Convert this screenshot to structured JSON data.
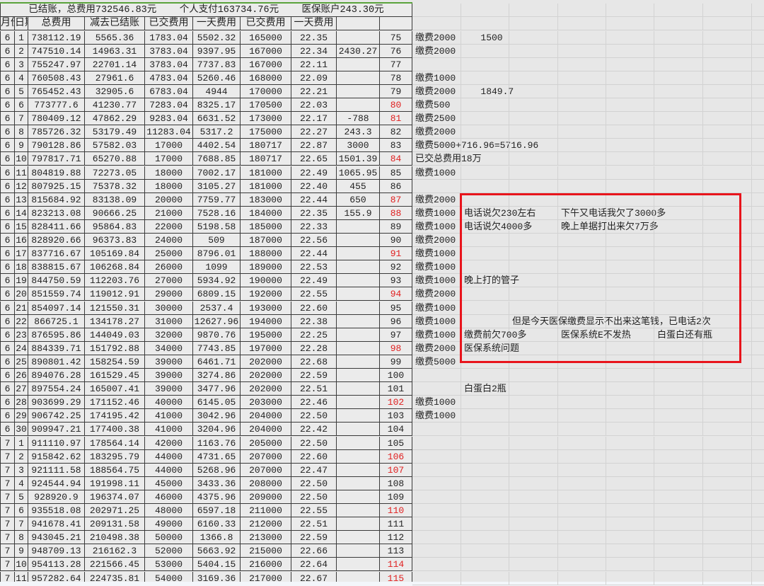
{
  "title_row": {
    "text": "已结账，总费用732546.83元    个人支付163734.76元    医保账户243.30元"
  },
  "headers": [
    "月份",
    "日期",
    "总费用",
    "减去已结账",
    "已交费用",
    "一天费用",
    "已交费用",
    "一天费用",
    "",
    ""
  ],
  "highlight_color": "#e02020",
  "highlight_box_color": "#e8141c",
  "red_numbers": [
    "80",
    "81",
    "84",
    "87",
    "88",
    "91",
    "94",
    "98",
    "102",
    "106",
    "107",
    "110",
    "114",
    "115"
  ],
  "rows": [
    {
      "c": [
        "6",
        "1",
        "738112.19",
        "5565.36",
        "1783.04",
        "5502.32",
        "165000",
        "22.35",
        "",
        "75"
      ],
      "n": [
        "缴费2000",
        "   1500"
      ]
    },
    {
      "c": [
        "6",
        "2",
        "747510.14",
        "14963.31",
        "3783.04",
        "9397.95",
        "167000",
        "22.34",
        "2430.27",
        "76"
      ],
      "n": [
        "缴费2000"
      ]
    },
    {
      "c": [
        "6",
        "3",
        "755247.97",
        "22701.14",
        "3783.04",
        "7737.83",
        "167000",
        "22.11",
        "",
        "77"
      ],
      "n": []
    },
    {
      "c": [
        "6",
        "4",
        "760508.43",
        "27961.6",
        "4783.04",
        "5260.46",
        "168000",
        "22.09",
        "",
        "78"
      ],
      "n": [
        "缴费1000"
      ]
    },
    {
      "c": [
        "6",
        "5",
        "765452.43",
        "32905.6",
        "6783.04",
        "4944",
        "170000",
        "22.21",
        "",
        "79"
      ],
      "n": [
        "缴费2000",
        "   1849.7"
      ]
    },
    {
      "c": [
        "6",
        "6",
        "773777.6",
        "41230.77",
        "7283.04",
        "8325.17",
        "170500",
        "22.03",
        "",
        "80"
      ],
      "n": [
        "缴费500"
      ]
    },
    {
      "c": [
        "6",
        "7",
        "780409.12",
        "47862.29",
        "9283.04",
        "6631.52",
        "173000",
        "22.17",
        "-788",
        "81"
      ],
      "n": [
        "缴费2500"
      ]
    },
    {
      "c": [
        "6",
        "8",
        "785726.32",
        "53179.49",
        "11283.04",
        "5317.2",
        "175000",
        "22.27",
        "243.3",
        "82"
      ],
      "n": [
        "缴费2000"
      ]
    },
    {
      "c": [
        "6",
        "9",
        "790128.86",
        "57582.03",
        "17000",
        "4402.54",
        "180717",
        "22.87",
        "3000",
        "83"
      ],
      "n": [
        "缴费5000+716.96=5716.96"
      ]
    },
    {
      "c": [
        "6",
        "10",
        "797817.71",
        "65270.88",
        "17000",
        "7688.85",
        "180717",
        "22.65",
        "1501.39",
        "84"
      ],
      "n": [
        "已交总费用18万"
      ]
    },
    {
      "c": [
        "6",
        "11",
        "804819.88",
        "72273.05",
        "18000",
        "7002.17",
        "181000",
        "22.49",
        "1065.95",
        "85"
      ],
      "n": [
        "缴费1000"
      ]
    },
    {
      "c": [
        "6",
        "12",
        "807925.15",
        "75378.32",
        "18000",
        "3105.27",
        "181000",
        "22.40",
        "455",
        "86"
      ],
      "n": []
    },
    {
      "c": [
        "6",
        "13",
        "815684.92",
        "83138.09",
        "20000",
        "7759.77",
        "183000",
        "22.44",
        "650",
        "87"
      ],
      "n": [
        "缴费2000"
      ]
    },
    {
      "c": [
        "6",
        "14",
        "823213.08",
        "90666.25",
        "21000",
        "7528.16",
        "184000",
        "22.35",
        "155.9",
        "88"
      ],
      "n": [
        "缴费1000",
        "电话说欠230左右",
        "",
        "下午又电话我欠了3000多"
      ]
    },
    {
      "c": [
        "6",
        "15",
        "828411.66",
        "95864.83",
        "22000",
        "5198.58",
        "185000",
        "22.33",
        "",
        "89"
      ],
      "n": [
        "缴费1000",
        "电话说欠4000多",
        "",
        "晚上单据打出来欠7万多"
      ]
    },
    {
      "c": [
        "6",
        "16",
        "828920.66",
        "96373.83",
        "24000",
        "509",
        "187000",
        "22.56",
        "",
        "90"
      ],
      "n": [
        "缴费2000"
      ]
    },
    {
      "c": [
        "6",
        "17",
        "837716.67",
        "105169.84",
        "25000",
        "8796.01",
        "188000",
        "22.44",
        "",
        "91"
      ],
      "n": [
        "缴费1000"
      ]
    },
    {
      "c": [
        "6",
        "18",
        "838815.67",
        "106268.84",
        "26000",
        "1099",
        "189000",
        "22.53",
        "",
        "92"
      ],
      "n": [
        "缴费1000"
      ]
    },
    {
      "c": [
        "6",
        "19",
        "844750.59",
        "112203.76",
        "27000",
        "5934.92",
        "190000",
        "22.49",
        "",
        "93"
      ],
      "n": [
        "缴费1000",
        "晚上打的管子"
      ]
    },
    {
      "c": [
        "6",
        "20",
        "851559.74",
        "119012.91",
        "29000",
        "6809.15",
        "192000",
        "22.55",
        "",
        "94"
      ],
      "n": [
        "缴费2000"
      ]
    },
    {
      "c": [
        "6",
        "21",
        "854097.14",
        "121550.31",
        "30000",
        "2537.4",
        "193000",
        "22.60",
        "",
        "95"
      ],
      "n": [
        "缴费1000"
      ]
    },
    {
      "c": [
        "6",
        "22",
        "866725.1",
        "134178.27",
        "31000",
        "12627.96",
        "194000",
        "22.38",
        "",
        "96"
      ],
      "n": [
        "缴费1000",
        "",
        "但是今天医保缴费显示不出来这笔钱，已电话2次"
      ]
    },
    {
      "c": [
        "6",
        "23",
        "876595.86",
        "144049.03",
        "32000",
        "9870.76",
        "195000",
        "22.25",
        "",
        "97"
      ],
      "n": [
        "缴费1000",
        "缴费前欠700多",
        "",
        "医保系统E不发热",
        "",
        "白蛋白还有瓶"
      ]
    },
    {
      "c": [
        "6",
        "24",
        "884339.71",
        "151792.88",
        "34000",
        "7743.85",
        "197000",
        "22.28",
        "",
        "98"
      ],
      "n": [
        "缴费2000",
        "医保系统问题"
      ]
    },
    {
      "c": [
        "6",
        "25",
        "890801.42",
        "158254.59",
        "39000",
        "6461.71",
        "202000",
        "22.68",
        "",
        "99"
      ],
      "n": [
        "缴费5000"
      ]
    },
    {
      "c": [
        "6",
        "26",
        "894076.28",
        "161529.45",
        "39000",
        "3274.86",
        "202000",
        "22.59",
        "",
        "100"
      ],
      "n": []
    },
    {
      "c": [
        "6",
        "27",
        "897554.24",
        "165007.41",
        "39000",
        "3477.96",
        "202000",
        "22.51",
        "",
        "101"
      ],
      "n": [
        "",
        "白蛋白2瓶"
      ]
    },
    {
      "c": [
        "6",
        "28",
        "903699.29",
        "171152.46",
        "40000",
        "6145.05",
        "203000",
        "22.46",
        "",
        "102"
      ],
      "n": [
        "缴费1000"
      ]
    },
    {
      "c": [
        "6",
        "29",
        "906742.25",
        "174195.42",
        "41000",
        "3042.96",
        "204000",
        "22.50",
        "",
        "103"
      ],
      "n": [
        "缴费1000"
      ]
    },
    {
      "c": [
        "6",
        "30",
        "909947.21",
        "177400.38",
        "41000",
        "3204.96",
        "204000",
        "22.42",
        "",
        "104"
      ],
      "n": []
    },
    {
      "c": [
        "7",
        "1",
        "911110.97",
        "178564.14",
        "42000",
        "1163.76",
        "205000",
        "22.50",
        "",
        "105"
      ],
      "n": []
    },
    {
      "c": [
        "7",
        "2",
        "915842.62",
        "183295.79",
        "44000",
        "4731.65",
        "207000",
        "22.60",
        "",
        "106"
      ],
      "n": []
    },
    {
      "c": [
        "7",
        "3",
        "921111.58",
        "188564.75",
        "44000",
        "5268.96",
        "207000",
        "22.47",
        "",
        "107"
      ],
      "n": []
    },
    {
      "c": [
        "7",
        "4",
        "924544.94",
        "191998.11",
        "45000",
        "3433.36",
        "208000",
        "22.50",
        "",
        "108"
      ],
      "n": []
    },
    {
      "c": [
        "7",
        "5",
        "928920.9",
        "196374.07",
        "46000",
        "4375.96",
        "209000",
        "22.50",
        "",
        "109"
      ],
      "n": []
    },
    {
      "c": [
        "7",
        "6",
        "935518.08",
        "202971.25",
        "48000",
        "6597.18",
        "211000",
        "22.55",
        "",
        "110"
      ],
      "n": []
    },
    {
      "c": [
        "7",
        "7",
        "941678.41",
        "209131.58",
        "49000",
        "6160.33",
        "212000",
        "22.51",
        "",
        "111"
      ],
      "n": []
    },
    {
      "c": [
        "7",
        "8",
        "943045.21",
        "210498.38",
        "50000",
        "1366.8",
        "213000",
        "22.59",
        "",
        "112"
      ],
      "n": []
    },
    {
      "c": [
        "7",
        "9",
        "948709.13",
        "216162.3",
        "52000",
        "5663.92",
        "215000",
        "22.66",
        "",
        "113"
      ],
      "n": []
    },
    {
      "c": [
        "7",
        "10",
        "954113.28",
        "221566.45",
        "53000",
        "5404.15",
        "216000",
        "22.64",
        "",
        "114"
      ],
      "n": []
    },
    {
      "c": [
        "7",
        "11",
        "957282.64",
        "224735.81",
        "54000",
        "3169.36",
        "217000",
        "22.67",
        "",
        "115"
      ],
      "n": []
    }
  ]
}
